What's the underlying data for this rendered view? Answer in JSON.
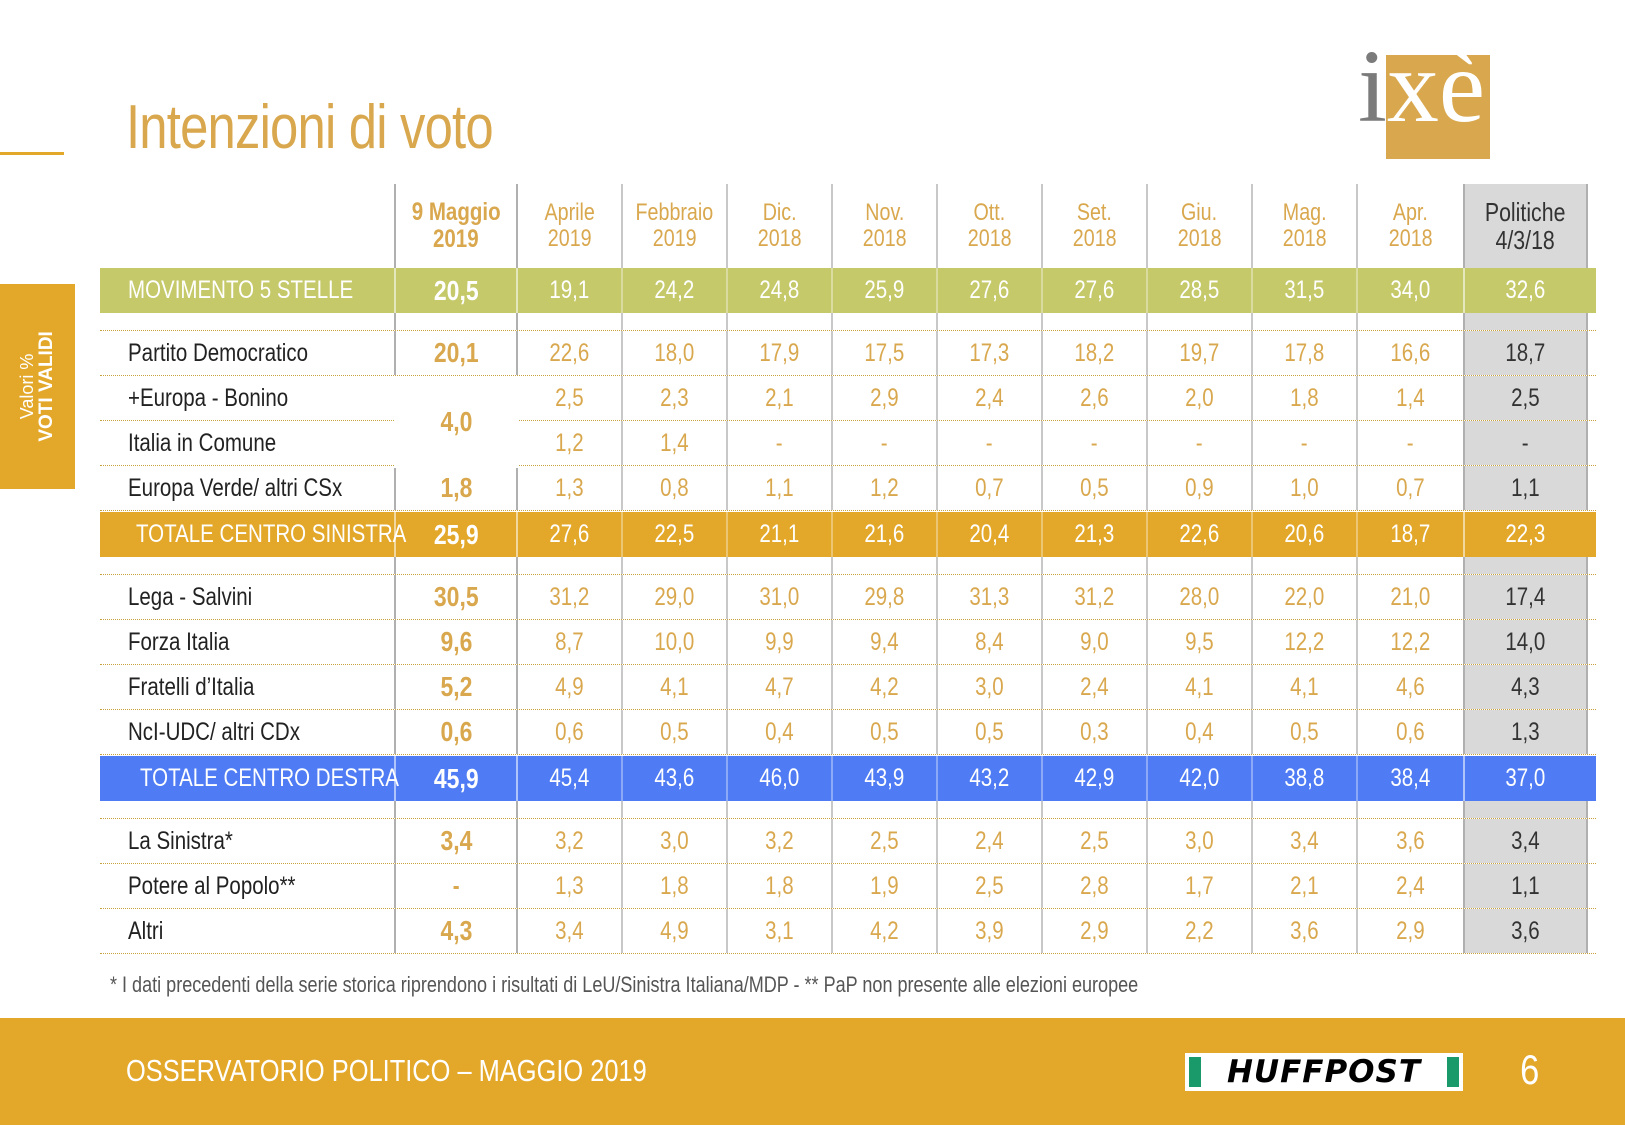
{
  "title": "Intenzioni di voto",
  "logo": {
    "text_i": "i",
    "text_x": "x",
    "text_e": "è"
  },
  "side_tab": {
    "line1": "Valori %",
    "line2": "VOTI VALIDI"
  },
  "columns": {
    "first": [
      "9 Maggio",
      "2019"
    ],
    "months": [
      [
        "Aprile",
        "2019"
      ],
      [
        "Febbraio",
        "2019"
      ],
      [
        "Dic.",
        "2018"
      ],
      [
        "Nov.",
        "2018"
      ],
      [
        "Ott.",
        "2018"
      ],
      [
        "Set.",
        "2018"
      ],
      [
        "Giu.",
        "2018"
      ],
      [
        "Mag.",
        "2018"
      ],
      [
        "Apr.",
        "2018"
      ]
    ],
    "last": [
      "Politiche",
      "4/3/18"
    ]
  },
  "rows": {
    "m5s": {
      "label": "MOVIMENTO 5 STELLE",
      "first": "20,5",
      "values": [
        "19,1",
        "24,2",
        "24,8",
        "25,9",
        "27,6",
        "27,6",
        "28,5",
        "31,5",
        "34,0"
      ],
      "pol": "32,6"
    },
    "pd": {
      "label": "Partito Democratico",
      "first": "20,1",
      "values": [
        "22,6",
        "18,0",
        "17,9",
        "17,5",
        "17,3",
        "18,2",
        "19,7",
        "17,8",
        "16,6"
      ],
      "pol": "18,7"
    },
    "europa": {
      "label": "+Europa - Bonino",
      "values": [
        "2,5",
        "2,3",
        "2,1",
        "2,9",
        "2,4",
        "2,6",
        "2,0",
        "1,8",
        "1,4"
      ],
      "pol": "2,5"
    },
    "comune": {
      "label": "Italia in Comune",
      "values": [
        "1,2",
        "1,4",
        "-",
        "-",
        "-",
        "-",
        "-",
        "-",
        "-"
      ],
      "pol": "-"
    },
    "merged_first": "4,0",
    "verde": {
      "label": "Europa Verde/ altri CSx",
      "first": "1,8",
      "values": [
        "1,3",
        "0,8",
        "1,1",
        "1,2",
        "0,7",
        "0,5",
        "0,9",
        "1,0",
        "0,7"
      ],
      "pol": "1,1"
    },
    "csx": {
      "label": "TOTALE CENTRO SINISTRA",
      "first": "25,9",
      "values": [
        "27,6",
        "22,5",
        "21,1",
        "21,6",
        "20,4",
        "21,3",
        "22,6",
        "20,6",
        "18,7"
      ],
      "pol": "22,3"
    },
    "lega": {
      "label": "Lega - Salvini",
      "first": "30,5",
      "values": [
        "31,2",
        "29,0",
        "31,0",
        "29,8",
        "31,3",
        "31,2",
        "28,0",
        "22,0",
        "21,0"
      ],
      "pol": "17,4"
    },
    "fi": {
      "label": "Forza Italia",
      "first": "9,6",
      "values": [
        "8,7",
        "10,0",
        "9,9",
        "9,4",
        "8,4",
        "9,0",
        "9,5",
        "12,2",
        "12,2"
      ],
      "pol": "14,0"
    },
    "fdi": {
      "label": "Fratelli d’Italia",
      "first": "5,2",
      "values": [
        "4,9",
        "4,1",
        "4,7",
        "4,2",
        "3,0",
        "2,4",
        "4,1",
        "4,1",
        "4,6"
      ],
      "pol": "4,3"
    },
    "ncl": {
      "label": "NcI-UDC/ altri CDx",
      "first": "0,6",
      "values": [
        "0,6",
        "0,5",
        "0,4",
        "0,5",
        "0,5",
        "0,3",
        "0,4",
        "0,5",
        "0,6"
      ],
      "pol": "1,3"
    },
    "cdx": {
      "label": "TOTALE CENTRO DESTRA",
      "first": "45,9",
      "values": [
        "45,4",
        "43,6",
        "46,0",
        "43,9",
        "43,2",
        "42,9",
        "42,0",
        "38,8",
        "38,4"
      ],
      "pol": "37,0"
    },
    "sinistra": {
      "label": "La Sinistra*",
      "first": "3,4",
      "values": [
        "3,2",
        "3,0",
        "3,2",
        "2,5",
        "2,4",
        "2,5",
        "3,0",
        "3,4",
        "3,6"
      ],
      "pol": "3,4"
    },
    "pap": {
      "label": "Potere al Popolo**",
      "first": "-",
      "values": [
        "1,3",
        "1,8",
        "1,8",
        "1,9",
        "2,5",
        "2,8",
        "1,7",
        "2,1",
        "2,4"
      ],
      "pol": "1,1"
    },
    "altri": {
      "label": "Altri",
      "first": "4,3",
      "values": [
        "3,4",
        "4,9",
        "3,1",
        "4,2",
        "3,9",
        "2,9",
        "2,2",
        "3,6",
        "2,9"
      ],
      "pol": "3,6"
    }
  },
  "footnote": "* I dati precedenti della serie storica riprendono i risultati di LeU/Sinistra Italiana/MDP - ** PaP non presente alle elezioni europee",
  "footer": {
    "text": "OSSERVATORIO POLITICO – MAGGIO 2019",
    "brand": "HUFFPOST",
    "page": "6"
  },
  "colors": {
    "gold": "#e3a82a",
    "title": "#d9a84e",
    "m5s_band": "#c5c96a",
    "csx_band": "#e3a82a",
    "cdx_band": "#4f7cf4",
    "politiche_bg": "#d9d9d9"
  }
}
